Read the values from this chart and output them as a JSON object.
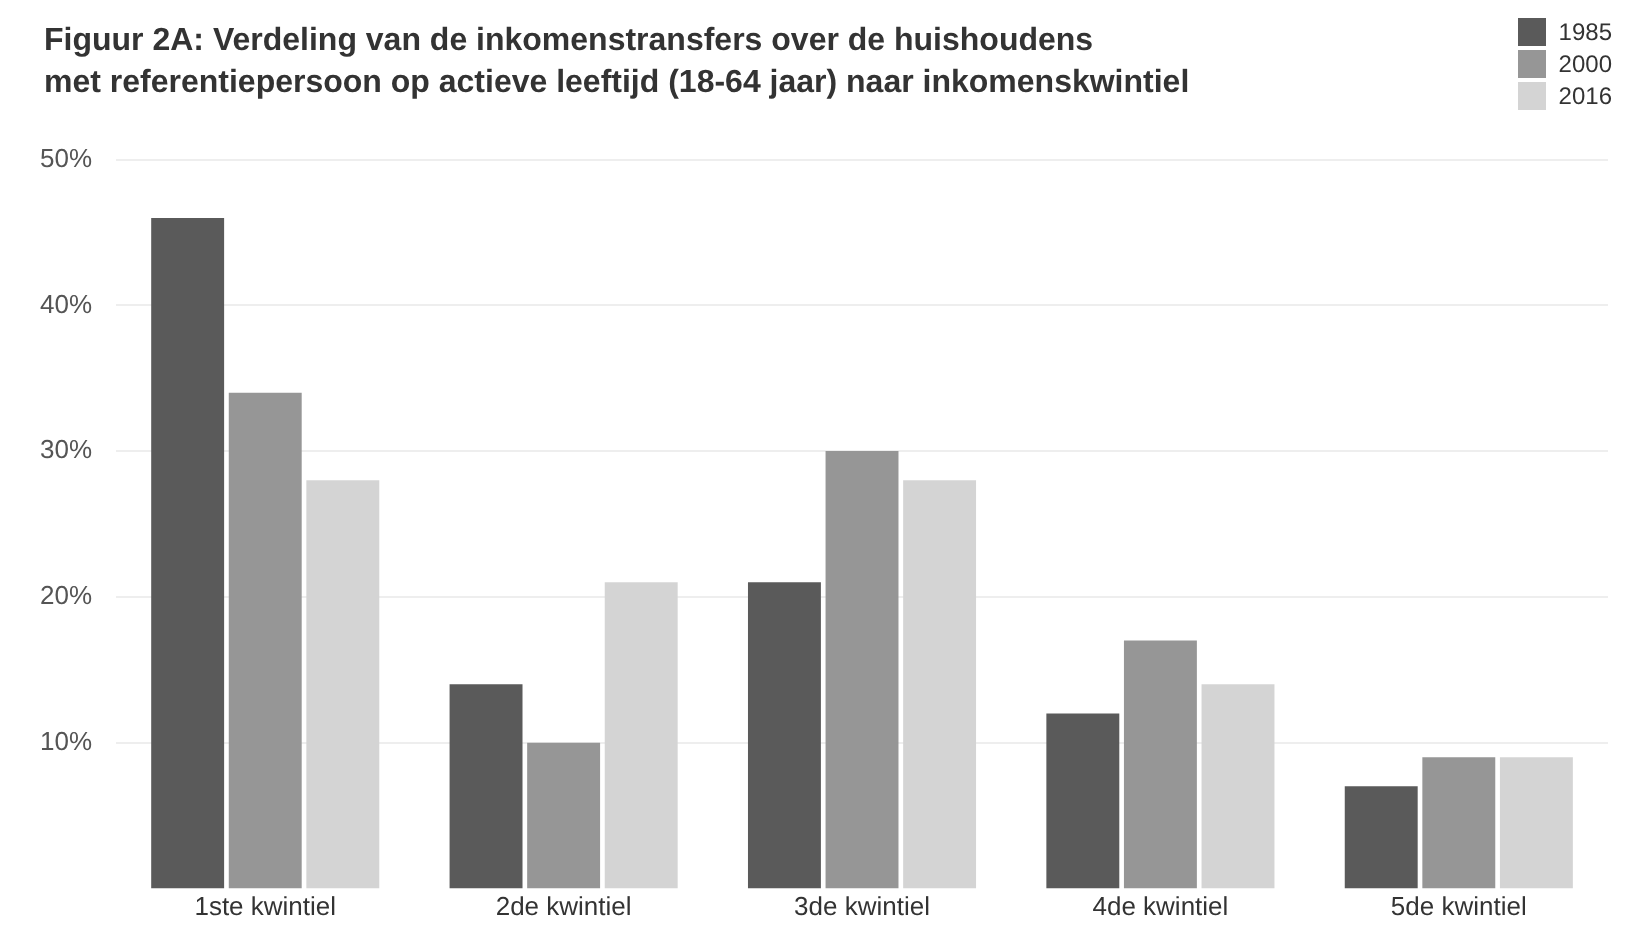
{
  "chart_data": {
    "type": "bar",
    "title": "Figuur 2A: Verdeling van de inkomenstransfers over de huishoudens\nmet referentiepersoon op actieve leeftijd (18-64 jaar) naar inkomenskwintiel",
    "categories": [
      "1ste kwintiel",
      "2de kwintiel",
      "3de kwintiel",
      "4de kwintiel",
      "5de kwintiel"
    ],
    "series": [
      {
        "name": "1985",
        "color": "#5a5a5a",
        "values": [
          46,
          14,
          21,
          12,
          7
        ]
      },
      {
        "name": "2000",
        "color": "#969696",
        "values": [
          34,
          10,
          30,
          17,
          9
        ]
      },
      {
        "name": "2016",
        "color": "#d4d4d4",
        "values": [
          28,
          21,
          28,
          14,
          9
        ]
      }
    ],
    "ylim": [
      0,
      50
    ],
    "yticks": [
      {
        "value": 10,
        "label": "10%"
      },
      {
        "value": 20,
        "label": "20%"
      },
      {
        "value": 30,
        "label": "30%"
      },
      {
        "value": 40,
        "label": "40%"
      },
      {
        "value": 50,
        "label": "50%"
      }
    ],
    "grid": "y",
    "legend": "top right"
  }
}
